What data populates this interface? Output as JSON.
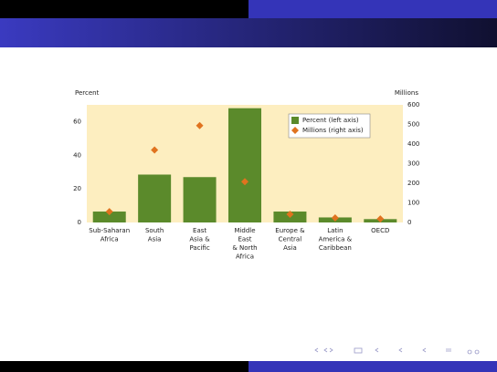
{
  "chart_data": {
    "type": "bar",
    "y_label": "Percent",
    "y2_label": "Millions",
    "categories": [
      [
        "Sub-Saharan",
        "Africa"
      ],
      [
        "South",
        "Asia"
      ],
      [
        "East",
        "Asia &",
        "Pacific"
      ],
      [
        "Middle",
        "East",
        "& North",
        "Africa"
      ],
      [
        "Europe &",
        "Central",
        "Asia"
      ],
      [
        "Latin",
        "America &",
        "Caribbean"
      ],
      [
        "OECD"
      ]
    ],
    "series": [
      {
        "name": "Percent (left axis)",
        "color": "#5b8a2b",
        "values": [
          6.5,
          28.5,
          27,
          68,
          6.5,
          3,
          2
        ]
      },
      {
        "name": "Millions (right axis)",
        "color": "#e0731f",
        "axis": "y2",
        "values": [
          55,
          370,
          494,
          208,
          42,
          23,
          18
        ]
      }
    ],
    "ylim": [
      0,
      70
    ],
    "yticks": [
      0,
      20,
      40,
      60
    ],
    "y2lim": [
      0,
      600
    ],
    "y2ticks": [
      0,
      100,
      200,
      300,
      400,
      500,
      600
    ],
    "background": "#fdeec0",
    "legend": "top-right"
  }
}
